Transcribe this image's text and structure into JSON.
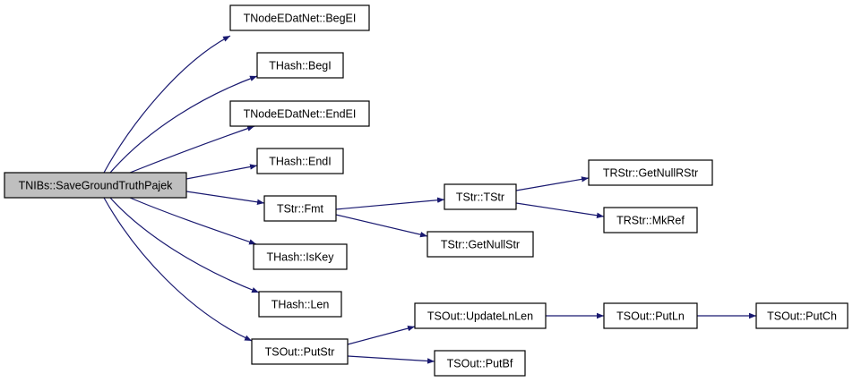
{
  "graph": {
    "colors": {
      "edge": "#191970",
      "root_fill": "#bfbfbf",
      "node_fill": "#ffffff",
      "border": "#000000"
    },
    "root": "root",
    "nodes": [
      {
        "id": "root",
        "label": "TNIBs::SaveGroundTruthPajek"
      },
      {
        "id": "begei",
        "label": "TNodeEDatNet::BegEI"
      },
      {
        "id": "begi",
        "label": "THash::BegI"
      },
      {
        "id": "endei",
        "label": "TNodeEDatNet::EndEI"
      },
      {
        "id": "endi",
        "label": "THash::EndI"
      },
      {
        "id": "fmt",
        "label": "TStr::Fmt"
      },
      {
        "id": "iskey",
        "label": "THash::IsKey"
      },
      {
        "id": "len",
        "label": "THash::Len"
      },
      {
        "id": "putstr",
        "label": "TSOut::PutStr"
      },
      {
        "id": "tstr",
        "label": "TStr::TStr"
      },
      {
        "id": "getnullstr",
        "label": "TStr::GetNullStr"
      },
      {
        "id": "getnullrstr",
        "label": "TRStr::GetNullRStr"
      },
      {
        "id": "mkref",
        "label": "TRStr::MkRef"
      },
      {
        "id": "updatelnlen",
        "label": "TSOut::UpdateLnLen"
      },
      {
        "id": "putbf",
        "label": "TSOut::PutBf"
      },
      {
        "id": "putln",
        "label": "TSOut::PutLn"
      },
      {
        "id": "putch",
        "label": "TSOut::PutCh"
      }
    ],
    "edges": [
      [
        "root",
        "begei"
      ],
      [
        "root",
        "begi"
      ],
      [
        "root",
        "endei"
      ],
      [
        "root",
        "endi"
      ],
      [
        "root",
        "fmt"
      ],
      [
        "root",
        "iskey"
      ],
      [
        "root",
        "len"
      ],
      [
        "root",
        "putstr"
      ],
      [
        "fmt",
        "tstr"
      ],
      [
        "fmt",
        "getnullstr"
      ],
      [
        "tstr",
        "getnullrstr"
      ],
      [
        "tstr",
        "mkref"
      ],
      [
        "putstr",
        "updatelnlen"
      ],
      [
        "putstr",
        "putbf"
      ],
      [
        "updatelnlen",
        "putln"
      ],
      [
        "putln",
        "putch"
      ]
    ]
  }
}
